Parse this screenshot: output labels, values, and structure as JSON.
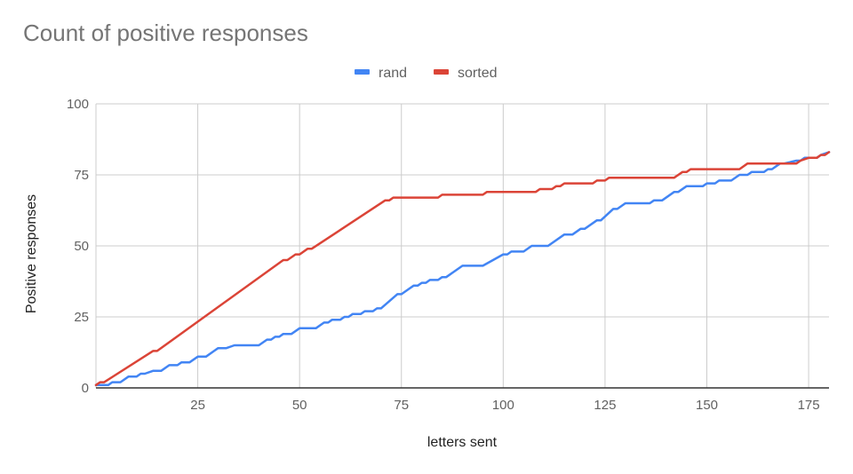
{
  "chart_data": {
    "type": "line",
    "title": "Count of positive responses",
    "xlabel": "letters sent",
    "ylabel": "Positive responses",
    "xlim": [
      0,
      180
    ],
    "ylim": [
      0,
      100
    ],
    "x_ticks": [
      25,
      50,
      75,
      100,
      125,
      150,
      175
    ],
    "y_ticks": [
      0,
      25,
      50,
      75,
      100
    ],
    "grid": true,
    "legend_position": "top",
    "series": [
      {
        "name": "rand",
        "color": "#4285F4",
        "points": [
          [
            0,
            1
          ],
          [
            3,
            1
          ],
          [
            4,
            2
          ],
          [
            6,
            2
          ],
          [
            8,
            4
          ],
          [
            10,
            4
          ],
          [
            11,
            5
          ],
          [
            12,
            5
          ],
          [
            14,
            6
          ],
          [
            16,
            6
          ],
          [
            18,
            8
          ],
          [
            20,
            8
          ],
          [
            21,
            9
          ],
          [
            23,
            9
          ],
          [
            25,
            11
          ],
          [
            27,
            11
          ],
          [
            29,
            13
          ],
          [
            30,
            14
          ],
          [
            32,
            14
          ],
          [
            34,
            15
          ],
          [
            40,
            15
          ],
          [
            42,
            17
          ],
          [
            43,
            17
          ],
          [
            44,
            18
          ],
          [
            45,
            18
          ],
          [
            46,
            19
          ],
          [
            48,
            19
          ],
          [
            50,
            21
          ],
          [
            54,
            21
          ],
          [
            56,
            23
          ],
          [
            57,
            23
          ],
          [
            58,
            24
          ],
          [
            60,
            24
          ],
          [
            61,
            25
          ],
          [
            62,
            25
          ],
          [
            63,
            26
          ],
          [
            65,
            26
          ],
          [
            66,
            27
          ],
          [
            68,
            27
          ],
          [
            69,
            28
          ],
          [
            70,
            28
          ],
          [
            74,
            33
          ],
          [
            75,
            33
          ],
          [
            77,
            35
          ],
          [
            78,
            36
          ],
          [
            79,
            36
          ],
          [
            80,
            37
          ],
          [
            81,
            37
          ],
          [
            82,
            38
          ],
          [
            84,
            38
          ],
          [
            85,
            39
          ],
          [
            86,
            39
          ],
          [
            90,
            43
          ],
          [
            95,
            43
          ],
          [
            100,
            47
          ],
          [
            101,
            47
          ],
          [
            102,
            48
          ],
          [
            105,
            48
          ],
          [
            107,
            50
          ],
          [
            111,
            50
          ],
          [
            115,
            54
          ],
          [
            117,
            54
          ],
          [
            119,
            56
          ],
          [
            120,
            56
          ],
          [
            123,
            59
          ],
          [
            124,
            59
          ],
          [
            127,
            63
          ],
          [
            128,
            63
          ],
          [
            130,
            65
          ],
          [
            136,
            65
          ],
          [
            137,
            66
          ],
          [
            139,
            66
          ],
          [
            142,
            69
          ],
          [
            143,
            69
          ],
          [
            145,
            71
          ],
          [
            149,
            71
          ],
          [
            150,
            72
          ],
          [
            152,
            72
          ],
          [
            153,
            73
          ],
          [
            156,
            73
          ],
          [
            158,
            75
          ],
          [
            160,
            75
          ],
          [
            161,
            76
          ],
          [
            164,
            76
          ],
          [
            165,
            77
          ],
          [
            166,
            77
          ],
          [
            168,
            79
          ],
          [
            169,
            79
          ],
          [
            172,
            80
          ],
          [
            173,
            80
          ],
          [
            174,
            81
          ],
          [
            176,
            81
          ],
          [
            177,
            81
          ],
          [
            178,
            82
          ],
          [
            180,
            83
          ]
        ]
      },
      {
        "name": "sorted",
        "color": "#DB4437",
        "points": [
          [
            0,
            1
          ],
          [
            1,
            2
          ],
          [
            2,
            2
          ],
          [
            14,
            13
          ],
          [
            15,
            13
          ],
          [
            46,
            45
          ],
          [
            47,
            45
          ],
          [
            49,
            47
          ],
          [
            50,
            47
          ],
          [
            52,
            49
          ],
          [
            53,
            49
          ],
          [
            71,
            66
          ],
          [
            72,
            66
          ],
          [
            73,
            67
          ],
          [
            84,
            67
          ],
          [
            85,
            68
          ],
          [
            95,
            68
          ],
          [
            96,
            69
          ],
          [
            108,
            69
          ],
          [
            109,
            70
          ],
          [
            112,
            70
          ],
          [
            113,
            71
          ],
          [
            114,
            71
          ],
          [
            115,
            72
          ],
          [
            122,
            72
          ],
          [
            123,
            73
          ],
          [
            125,
            73
          ],
          [
            126,
            74
          ],
          [
            142,
            74
          ],
          [
            144,
            76
          ],
          [
            145,
            76
          ],
          [
            146,
            77
          ],
          [
            158,
            77
          ],
          [
            160,
            79
          ],
          [
            172,
            79
          ],
          [
            173,
            80
          ],
          [
            175,
            81
          ],
          [
            177,
            81
          ],
          [
            178,
            82
          ],
          [
            179,
            82
          ],
          [
            180,
            83
          ]
        ]
      }
    ]
  }
}
